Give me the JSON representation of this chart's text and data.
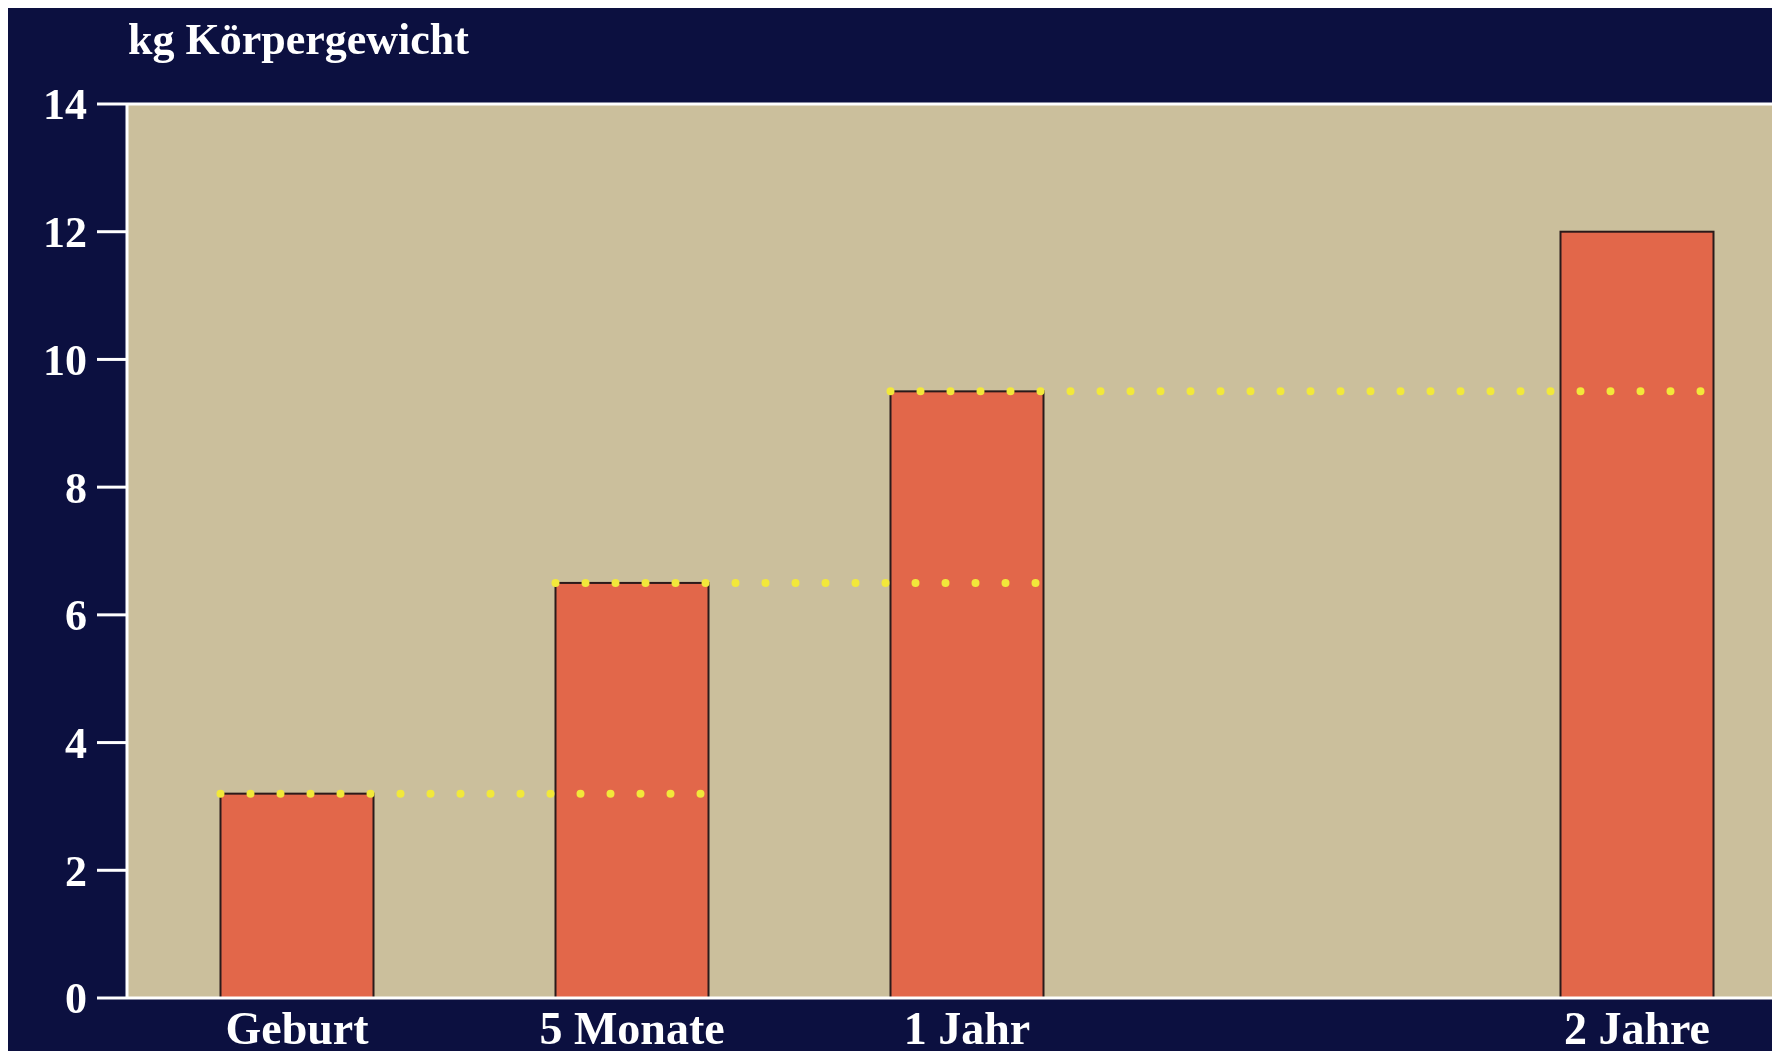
{
  "chart_data": {
    "type": "bar",
    "title": "kg Körpergewicht",
    "categories": [
      "Geburt",
      "5 Monate",
      "1 Jahr",
      null,
      "2 Jahre"
    ],
    "values": [
      3.2,
      6.5,
      9.5,
      null,
      12
    ],
    "color": "#e2674a",
    "ylim": [
      0,
      14
    ],
    "yticks": [
      0,
      2,
      4,
      6,
      8,
      10,
      12,
      14
    ],
    "ref_lines": [
      {
        "axis": "y",
        "value": 3.2,
        "color": "#f2e83a",
        "line_style": "dotted"
      },
      {
        "axis": "y",
        "value": 6.5,
        "color": "#f2e83a",
        "line_style": "dotted"
      },
      {
        "axis": "y",
        "value": 9.5,
        "color": "#f2e83a",
        "line_style": "dotted"
      }
    ],
    "grid": false
  }
}
